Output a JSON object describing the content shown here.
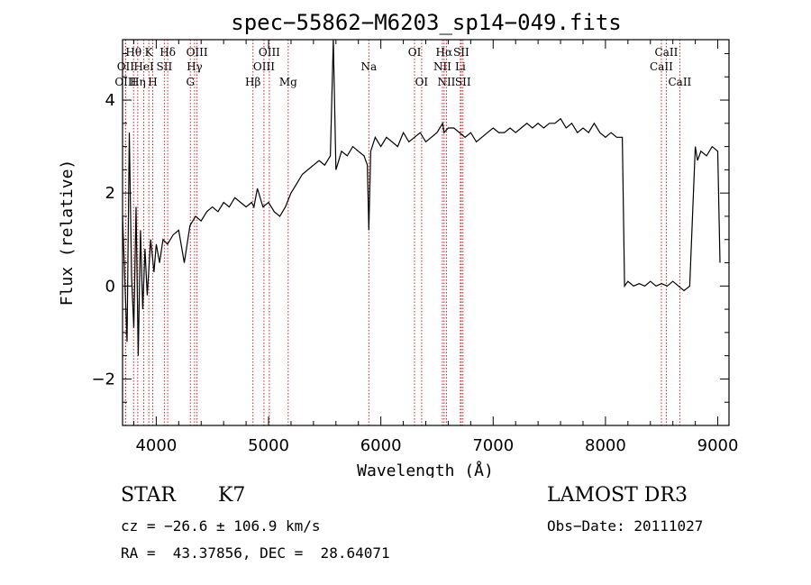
{
  "chart_data": {
    "type": "line",
    "title": "spec−55862−M6203_sp14−049.fits",
    "xlabel": "Wavelength (Å)",
    "ylabel": "Flux (relative)",
    "xlim": [
      3700,
      9100
    ],
    "ylim": [
      -3.0,
      5.3
    ],
    "xticks": [
      4000,
      5000,
      6000,
      7000,
      8000,
      9000
    ],
    "yticks": [
      -2,
      0,
      2,
      4
    ],
    "grid": false,
    "line_color": "#000000",
    "marker_color": "#cc2222",
    "series": [
      {
        "x": [
          3700,
          3740,
          3760,
          3780,
          3800,
          3820,
          3840,
          3860,
          3880,
          3900,
          3920,
          3950,
          3980,
          4000,
          4030,
          4060,
          4100,
          4150,
          4200,
          4250,
          4300,
          4350,
          4400,
          4450,
          4500,
          4550,
          4600,
          4650,
          4700,
          4750,
          4800,
          4850,
          4870,
          4900,
          4950,
          5000,
          5050,
          5100,
          5150,
          5200,
          5250,
          5300,
          5350,
          5400,
          5450,
          5500,
          5550,
          5577,
          5600,
          5650,
          5700,
          5750,
          5800,
          5850,
          5880,
          5893,
          5910,
          5950,
          6000,
          6050,
          6100,
          6150,
          6200,
          6250,
          6300,
          6350,
          6400,
          6450,
          6500,
          6550,
          6563,
          6600,
          6650,
          6700,
          6750,
          6800,
          6850,
          6900,
          6950,
          7000,
          7050,
          7100,
          7150,
          7200,
          7250,
          7300,
          7350,
          7400,
          7450,
          7500,
          7550,
          7600,
          7650,
          7700,
          7750,
          7800,
          7850,
          7900,
          7950,
          8000,
          8050,
          8100,
          8150,
          8170,
          8200,
          8250,
          8300,
          8350,
          8400,
          8450,
          8500,
          8550,
          8600,
          8650,
          8700,
          8750,
          8800,
          8820,
          8850,
          8900,
          8950,
          9000,
          9020
        ],
        "y": [
          1.5,
          -1.2,
          3.3,
          0.2,
          -0.9,
          1.7,
          -1.5,
          1.2,
          -0.5,
          0.8,
          -0.2,
          1.0,
          0.3,
          0.9,
          0.5,
          1.0,
          0.9,
          1.1,
          1.2,
          0.5,
          1.3,
          1.5,
          1.4,
          1.6,
          1.7,
          1.6,
          1.8,
          1.7,
          1.9,
          1.8,
          1.7,
          1.8,
          1.7,
          2.1,
          1.7,
          1.8,
          1.6,
          1.5,
          1.7,
          2.0,
          2.2,
          2.4,
          2.5,
          2.6,
          2.7,
          2.6,
          2.8,
          5.3,
          2.5,
          2.9,
          2.8,
          3.0,
          2.9,
          2.8,
          2.6,
          1.2,
          2.9,
          3.2,
          3.0,
          3.2,
          3.1,
          3.0,
          3.3,
          3.1,
          3.2,
          3.3,
          3.1,
          3.2,
          3.3,
          3.5,
          3.3,
          3.4,
          3.4,
          3.3,
          3.2,
          3.3,
          3.1,
          3.2,
          3.3,
          3.4,
          3.3,
          3.3,
          3.4,
          3.3,
          3.4,
          3.5,
          3.4,
          3.5,
          3.4,
          3.5,
          3.5,
          3.6,
          3.4,
          3.5,
          3.3,
          3.4,
          3.3,
          3.5,
          3.3,
          3.2,
          3.3,
          3.2,
          3.2,
          0.0,
          0.1,
          0.0,
          0.05,
          0.0,
          0.1,
          0.0,
          0.05,
          0.0,
          0.1,
          0.0,
          -0.1,
          0.0,
          3.0,
          2.7,
          2.9,
          2.8,
          3.0,
          2.9,
          0.5
        ]
      }
    ],
    "lines": [
      {
        "label": "Hθ",
        "x": 3798,
        "row": 0
      },
      {
        "label": "OII",
        "x": 3727,
        "row": 1
      },
      {
        "label": "OIII",
        "x": 3727,
        "row": 2
      },
      {
        "label": "Hη",
        "x": 3835,
        "row": 2
      },
      {
        "label": "HeI",
        "x": 3889,
        "row": 1
      },
      {
        "label": "K",
        "x": 3934,
        "row": 0
      },
      {
        "label": "H",
        "x": 3969,
        "row": 2
      },
      {
        "label": "SII",
        "x": 4072,
        "row": 1
      },
      {
        "label": "Hδ",
        "x": 4102,
        "row": 0
      },
      {
        "label": "OIII",
        "x": 4363,
        "row": 0
      },
      {
        "label": "Hγ",
        "x": 4341,
        "row": 1
      },
      {
        "label": "G",
        "x": 4304,
        "row": 2
      },
      {
        "label": "OIII",
        "x": 5007,
        "row": 0
      },
      {
        "label": "OIII",
        "x": 4959,
        "row": 1
      },
      {
        "label": "Hβ",
        "x": 4861,
        "row": 2
      },
      {
        "label": "Mg",
        "x": 5175,
        "row": 2
      },
      {
        "label": "Na",
        "x": 5893,
        "row": 1
      },
      {
        "label": "OI",
        "x": 6300,
        "row": 0
      },
      {
        "label": "OI",
        "x": 6363,
        "row": 2
      },
      {
        "label": "Hα",
        "x": 6563,
        "row": 0
      },
      {
        "label": "SII",
        "x": 6716,
        "row": 0
      },
      {
        "label": "NII",
        "x": 6548,
        "row": 1
      },
      {
        "label": "Li",
        "x": 6708,
        "row": 1
      },
      {
        "label": "NII",
        "x": 6584,
        "row": 2
      },
      {
        "label": "SII",
        "x": 6731,
        "row": 2
      },
      {
        "label": "CaII",
        "x": 8542,
        "row": 0
      },
      {
        "label": "CaII",
        "x": 8498,
        "row": 1
      },
      {
        "label": "CaII",
        "x": 8662,
        "row": 2
      }
    ]
  },
  "info": {
    "class": "STAR",
    "subclass": "K7",
    "survey": "LAMOST DR3",
    "cz": "cz = −26.6 ± 106.9 km/s",
    "obsdate": "Obs−Date: 20111027",
    "radec": "RA =  43.37856, DEC =  28.64071"
  }
}
